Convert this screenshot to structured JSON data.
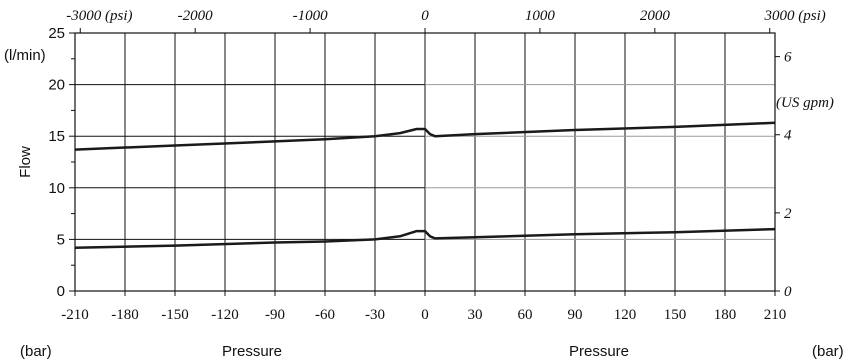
{
  "chart_data": {
    "type": "line",
    "xlabel": "Pressure",
    "xlabel_right": "Pressure",
    "xunit_left": "(bar)",
    "xunit_right": "(bar)",
    "ylabel": "Flow",
    "yunit": "(l/min)",
    "y2unit": "(US gpm)",
    "xlim": [
      -210,
      210
    ],
    "ylim": [
      0,
      25
    ],
    "x_ticks": [
      "-210",
      "-180",
      "-150",
      "-120",
      "-90",
      "-60",
      "-30",
      "0",
      "30",
      "60",
      "90",
      "120",
      "150",
      "180",
      "210"
    ],
    "y_ticks": [
      "0",
      "5",
      "10",
      "15",
      "20",
      "25"
    ],
    "top_ticks": [
      {
        "psi": -3000,
        "label": "-3000 (psi)"
      },
      {
        "psi": -2000,
        "label": "-2000"
      },
      {
        "psi": -1000,
        "label": "-1000"
      },
      {
        "psi": 0,
        "label": "0"
      },
      {
        "psi": 1000,
        "label": "1000"
      },
      {
        "psi": 2000,
        "label": "2000"
      },
      {
        "psi": 3000,
        "label": "3000 (psi)"
      }
    ],
    "right_ticks": [
      {
        "gpm": 0,
        "label": "0"
      },
      {
        "gpm": 2,
        "label": "2"
      },
      {
        "gpm": 4,
        "label": "4"
      },
      {
        "gpm": 6,
        "label": "6"
      }
    ],
    "grid": true,
    "series": [
      {
        "x": [
          -210,
          -150,
          -90,
          -60,
          -30,
          -15,
          -5,
          0,
          3,
          6,
          30,
          90,
          150,
          210
        ],
        "y": [
          13.7,
          14.1,
          14.5,
          14.7,
          15.0,
          15.3,
          15.7,
          15.7,
          15.2,
          15.0,
          15.2,
          15.6,
          15.9,
          16.3
        ]
      },
      {
        "x": [
          -210,
          -150,
          -90,
          -60,
          -30,
          -15,
          -5,
          0,
          3,
          6,
          30,
          90,
          150,
          210
        ],
        "y": [
          4.2,
          4.4,
          4.7,
          4.8,
          5.0,
          5.3,
          5.8,
          5.8,
          5.3,
          5.1,
          5.2,
          5.5,
          5.7,
          6.0
        ]
      }
    ]
  }
}
